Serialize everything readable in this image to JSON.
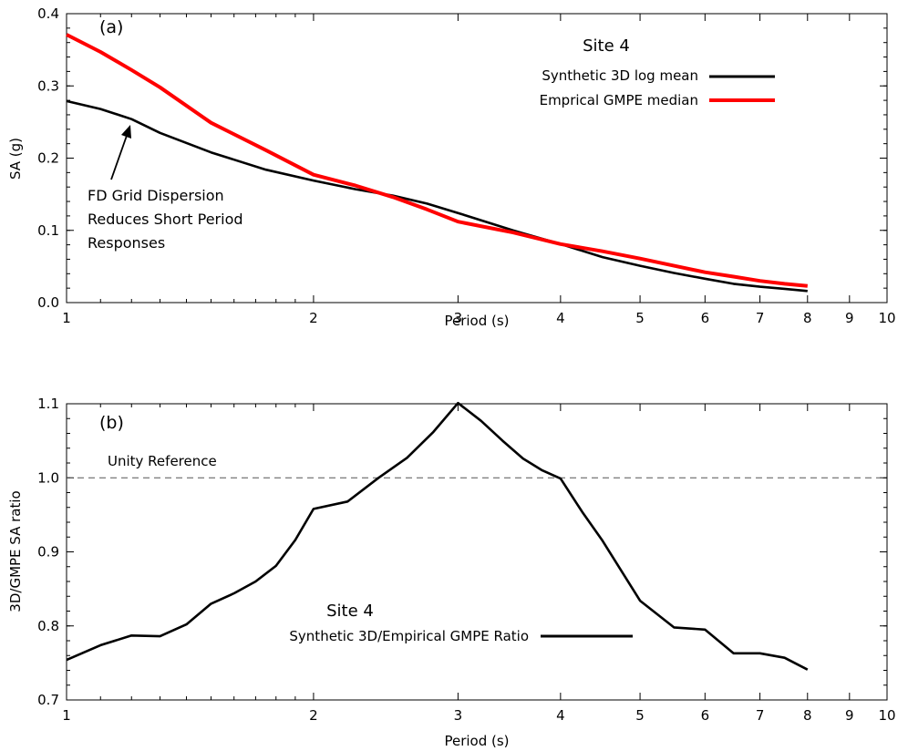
{
  "chart_data": [
    {
      "panel": "(a)",
      "type": "line",
      "title": "Site 4",
      "xlabel": "Period (s)",
      "ylabel": "SA (g)",
      "xscale": "log",
      "xlim": [
        1,
        10
      ],
      "ylim": [
        0,
        0.4
      ],
      "xticks": [
        1,
        2,
        3,
        4,
        5,
        6,
        7,
        8,
        9,
        10
      ],
      "yticks": [
        "0.0",
        "0.1",
        "0.2",
        "0.3",
        "0.4"
      ],
      "legend_position": "top-right",
      "series": [
        {
          "name": "Synthetic 3D log mean",
          "color": "#000000",
          "x": [
            1.0,
            1.1,
            1.2,
            1.3,
            1.5,
            1.75,
            2.0,
            2.25,
            2.5,
            2.75,
            3.0,
            3.5,
            4.0,
            4.5,
            5.0,
            5.5,
            6.0,
            6.5,
            7.0,
            7.5,
            8.0
          ],
          "y": [
            0.279,
            0.268,
            0.254,
            0.235,
            0.208,
            0.184,
            0.169,
            0.157,
            0.148,
            0.137,
            0.124,
            0.1,
            0.081,
            0.063,
            0.051,
            0.041,
            0.033,
            0.026,
            0.022,
            0.019,
            0.016
          ]
        },
        {
          "name": "Emprical GMPE median",
          "color": "#ff0000",
          "x": [
            1.0,
            1.1,
            1.2,
            1.3,
            1.5,
            1.75,
            2.0,
            2.25,
            2.5,
            2.75,
            3.0,
            3.5,
            4.0,
            4.5,
            5.0,
            5.5,
            6.0,
            6.5,
            7.0,
            7.5,
            8.0
          ],
          "y": [
            0.371,
            0.347,
            0.322,
            0.298,
            0.249,
            0.211,
            0.177,
            0.162,
            0.146,
            0.129,
            0.112,
            0.097,
            0.081,
            0.071,
            0.061,
            0.051,
            0.042,
            0.036,
            0.03,
            0.026,
            0.023
          ]
        }
      ],
      "annotation": {
        "lines": [
          "FD Grid Dispersion",
          "Reduces Short Period",
          "Responses"
        ],
        "arrow_target": {
          "x": 1.25,
          "y": 0.245
        }
      }
    },
    {
      "panel": "(b)",
      "type": "line",
      "title": "Site 4",
      "xlabel": "Period (s)",
      "ylabel": "3D/GMPE SA ratio",
      "xscale": "log",
      "xlim": [
        1,
        10
      ],
      "ylim": [
        0.7,
        1.1
      ],
      "xticks": [
        1,
        2,
        3,
        4,
        5,
        6,
        7,
        8,
        9,
        10
      ],
      "yticks": [
        "0.7",
        "0.8",
        "0.9",
        "1.0",
        "1.1"
      ],
      "legend_position": "bottom-center",
      "reference_line": {
        "y": 1.0,
        "label": "Unity Reference",
        "style": "dashed",
        "color": "#555555"
      },
      "series": [
        {
          "name": "Synthetic 3D/Empirical GMPE Ratio",
          "color": "#000000",
          "x": [
            1.0,
            1.1,
            1.2,
            1.3,
            1.4,
            1.5,
            1.6,
            1.7,
            1.8,
            1.9,
            2.0,
            2.2,
            2.4,
            2.6,
            2.8,
            3.0,
            3.2,
            3.4,
            3.6,
            3.8,
            4.0,
            4.25,
            4.5,
            5.0,
            5.5,
            6.0,
            6.5,
            7.0,
            7.5,
            8.0
          ],
          "y": [
            0.754,
            0.774,
            0.787,
            0.786,
            0.802,
            0.83,
            0.844,
            0.86,
            0.881,
            0.916,
            0.958,
            0.968,
            1.0,
            1.027,
            1.062,
            1.101,
            1.077,
            1.05,
            1.026,
            1.01,
            0.999,
            0.954,
            0.915,
            0.834,
            0.798,
            0.795,
            0.763,
            0.763,
            0.757,
            0.741
          ]
        }
      ]
    }
  ]
}
